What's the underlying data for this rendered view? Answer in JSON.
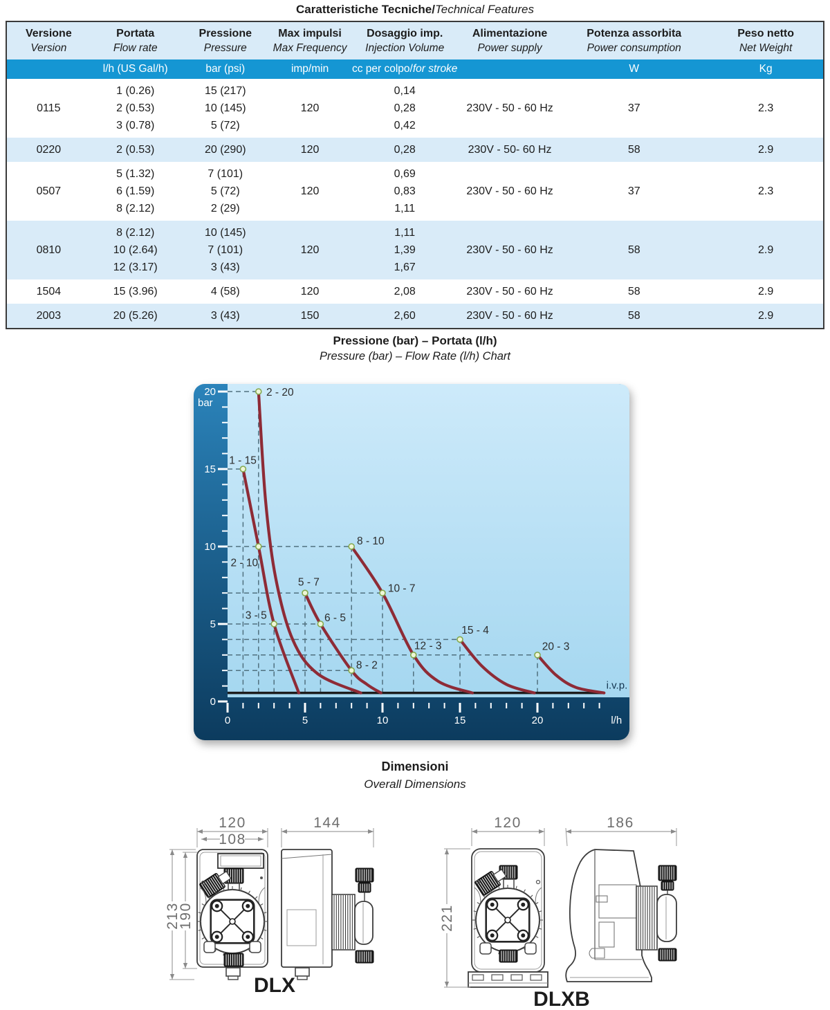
{
  "page": {
    "title_bold": "Caratteristiche Tecniche/",
    "title_italic": "Technical Features"
  },
  "table": {
    "columns": [
      {
        "it": "Versione",
        "en": "Version",
        "unit": ""
      },
      {
        "it": "Portata",
        "en": "Flow rate",
        "unit": "l/h (US Gal/h)"
      },
      {
        "it": "Pressione",
        "en": "Pressure",
        "unit": "bar (psi)"
      },
      {
        "it": "Max impulsi",
        "en": "Max Frequency",
        "unit": "imp/min"
      },
      {
        "it": "Dosaggio imp.",
        "en": "Injection Volume",
        "unit_plain": "cc per colpo/",
        "unit_italic": "for stroke"
      },
      {
        "it": "Alimentazione",
        "en": "Power supply",
        "unit": ""
      },
      {
        "it": "Potenza assorbita",
        "en": "Power consumption",
        "unit": "W"
      },
      {
        "it": "Peso netto",
        "en": "Net Weight",
        "unit": "Kg"
      }
    ],
    "rows": [
      {
        "version": "0115",
        "flow": [
          "1 (0.26)",
          "2 (0.53)",
          "3 (0.78)"
        ],
        "pressure": [
          "15 (217)",
          "10 (145)",
          "5 (72)"
        ],
        "freq": "120",
        "dose": [
          "0,14",
          "0,28",
          "0,42"
        ],
        "power_supply": "230V - 50 - 60 Hz",
        "watts": "37",
        "weight": "2.3"
      },
      {
        "version": "0220",
        "flow": [
          "2 (0.53)"
        ],
        "pressure": [
          "20 (290)"
        ],
        "freq": "120",
        "dose": [
          "0,28"
        ],
        "power_supply": "230V - 50- 60 Hz",
        "watts": "58",
        "weight": "2.9"
      },
      {
        "version": "0507",
        "flow": [
          "5 (1.32)",
          "6 (1.59)",
          "8 (2.12)"
        ],
        "pressure": [
          "7 (101)",
          "5 (72)",
          "2 (29)"
        ],
        "freq": "120",
        "dose": [
          "0,69",
          "0,83",
          "1,11"
        ],
        "power_supply": "230V - 50 - 60 Hz",
        "watts": "37",
        "weight": "2.3"
      },
      {
        "version": "0810",
        "flow": [
          "8 (2.12)",
          "10 (2.64)",
          "12 (3.17)"
        ],
        "pressure": [
          "10 (145)",
          "7 (101)",
          "3 (43)"
        ],
        "freq": "120",
        "dose": [
          "1,11",
          "1,39",
          "1,67"
        ],
        "power_supply": "230V - 50 - 60 Hz",
        "watts": "58",
        "weight": "2.9"
      },
      {
        "version": "1504",
        "flow": [
          "15 (3.96)"
        ],
        "pressure": [
          "4 (58)"
        ],
        "freq": "120",
        "dose": [
          "2,08"
        ],
        "power_supply": "230V - 50 - 60 Hz",
        "watts": "58",
        "weight": "2.9"
      },
      {
        "version": "2003",
        "flow": [
          "20 (5.26)"
        ],
        "pressure": [
          "3 (43)"
        ],
        "freq": "150",
        "dose": [
          "2,60"
        ],
        "power_supply": "230V - 50 - 60 Hz",
        "watts": "58",
        "weight": "2.9"
      }
    ]
  },
  "chart_data": {
    "type": "line",
    "title": "Pressione (bar) – Portata (l/h)",
    "subtitle": "Pressure (bar) – Flow Rate (l/h) Chart",
    "xlabel": "l/h",
    "ylabel": "bar",
    "xlim": [
      0,
      25.6
    ],
    "ylim": [
      0,
      21.6
    ],
    "x_major_ticks": [
      0,
      5,
      10,
      15,
      20
    ],
    "y_major_ticks": [
      0,
      5,
      10,
      15,
      20
    ],
    "grid": "dashed reference guides to operating points",
    "legend_position": "none",
    "ivp": {
      "y": 0.55,
      "x_end": 24.3,
      "label": "i.v.p."
    },
    "series": [
      {
        "name": "0115",
        "points": [
          [
            1,
            15
          ],
          [
            2,
            10
          ],
          [
            3,
            5
          ],
          [
            4.6,
            0.55
          ]
        ]
      },
      {
        "name": "0220",
        "points": [
          [
            2,
            20
          ],
          [
            2.45,
            13
          ],
          [
            3.1,
            8
          ],
          [
            4.2,
            4
          ],
          [
            5.8,
            1.8
          ],
          [
            8.6,
            0.55
          ]
        ]
      },
      {
        "name": "0507",
        "points": [
          [
            5,
            7
          ],
          [
            6,
            5
          ],
          [
            8,
            2
          ],
          [
            9,
            1.1
          ],
          [
            9.9,
            0.55
          ]
        ]
      },
      {
        "name": "0810",
        "points": [
          [
            8,
            10
          ],
          [
            10,
            7
          ],
          [
            12,
            3
          ],
          [
            13.6,
            1.3
          ],
          [
            15.8,
            0.55
          ]
        ]
      },
      {
        "name": "1504",
        "points": [
          [
            15,
            4
          ],
          [
            16.4,
            2.3
          ],
          [
            18,
            1.1
          ],
          [
            19.8,
            0.55
          ]
        ]
      },
      {
        "name": "2003",
        "points": [
          [
            20,
            3
          ],
          [
            21.2,
            1.7
          ],
          [
            22.5,
            0.9
          ],
          [
            24.3,
            0.55
          ]
        ]
      }
    ],
    "markers": [
      {
        "label": "2 - 20",
        "x": 2,
        "y": 20,
        "lx": 2.5,
        "ly": 19.95,
        "anchor": "start"
      },
      {
        "label": "1 - 15",
        "x": 1,
        "y": 15,
        "lx": 0.1,
        "ly": 15.55,
        "anchor": "start"
      },
      {
        "label": "2 - 10",
        "x": 2,
        "y": 10,
        "lx": 0.2,
        "ly": 8.95,
        "anchor": "start"
      },
      {
        "label": "8 - 10",
        "x": 8,
        "y": 10,
        "lx": 8.35,
        "ly": 10.35,
        "anchor": "start"
      },
      {
        "label": "5 - 7",
        "x": 5,
        "y": 7,
        "lx": 4.55,
        "ly": 7.7,
        "anchor": "start"
      },
      {
        "label": "10 - 7",
        "x": 10,
        "y": 7,
        "lx": 10.35,
        "ly": 7.3,
        "anchor": "start"
      },
      {
        "label": "3 - 5",
        "x": 3,
        "y": 5,
        "lx": 1.15,
        "ly": 5.55,
        "anchor": "start"
      },
      {
        "label": "6 - 5",
        "x": 6,
        "y": 5,
        "lx": 6.25,
        "ly": 5.4,
        "anchor": "start"
      },
      {
        "label": "15 - 4",
        "x": 15,
        "y": 4,
        "lx": 15.1,
        "ly": 4.6,
        "anchor": "start"
      },
      {
        "label": "12 - 3",
        "x": 12,
        "y": 3,
        "lx": 12.05,
        "ly": 3.6,
        "anchor": "start"
      },
      {
        "label": "20 - 3",
        "x": 20,
        "y": 3,
        "lx": 20.3,
        "ly": 3.55,
        "anchor": "start"
      },
      {
        "label": "8 - 2",
        "x": 8,
        "y": 2,
        "lx": 8.3,
        "ly": 2.35,
        "anchor": "start"
      }
    ],
    "guides": {
      "h": [
        {
          "y": 20,
          "x1": 0,
          "x2": 2
        },
        {
          "y": 15,
          "x1": 0,
          "x2": 1
        },
        {
          "y": 10,
          "x1": 0,
          "x2": 8
        },
        {
          "y": 7,
          "x1": 0,
          "x2": 10
        },
        {
          "y": 5,
          "x1": 0,
          "x2": 6
        },
        {
          "y": 4,
          "x1": 0,
          "x2": 15
        },
        {
          "y": 3,
          "x1": 0,
          "x2": 20
        },
        {
          "y": 2,
          "x1": 0,
          "x2": 8
        }
      ],
      "v": [
        {
          "x": 1,
          "y1": 0.55,
          "y2": 15
        },
        {
          "x": 2,
          "y1": 0.55,
          "y2": 20
        },
        {
          "x": 3,
          "y1": 0.55,
          "y2": 5
        },
        {
          "x": 5,
          "y1": 0.55,
          "y2": 7
        },
        {
          "x": 6,
          "y1": 0.55,
          "y2": 5
        },
        {
          "x": 8,
          "y1": 0.55,
          "y2": 10
        },
        {
          "x": 10,
          "y1": 0.55,
          "y2": 7
        },
        {
          "x": 12,
          "y1": 0.55,
          "y2": 3
        },
        {
          "x": 15,
          "y1": 0.55,
          "y2": 4
        },
        {
          "x": 20,
          "y1": 0.55,
          "y2": 3
        }
      ]
    },
    "colors": {
      "curve": "#8e2b36",
      "marker_fill": "#eef6d8",
      "marker_stroke": "#85a94e",
      "guide": "#50707f",
      "ivp_line": "#1d1d1d",
      "frame_top": "#2b83ba",
      "frame_bottom": "#0c3b5e",
      "plot_top": "#cdeafa",
      "plot_bottom": "#a5d7f0",
      "tick": "#ffffff",
      "label": "#2d2d2d",
      "ivp_text": "#12334d"
    }
  },
  "dimensions": {
    "title": "Dimensioni",
    "subtitle": "Overall Dimensions",
    "dlx": {
      "label": "DLX",
      "front_width": "120",
      "front_inner_width": "108",
      "height": "213",
      "inner_height": "190",
      "side_depth": "144"
    },
    "dlxb": {
      "label": "DLXB",
      "front_width": "120",
      "height": "221",
      "side_depth": "186"
    }
  }
}
